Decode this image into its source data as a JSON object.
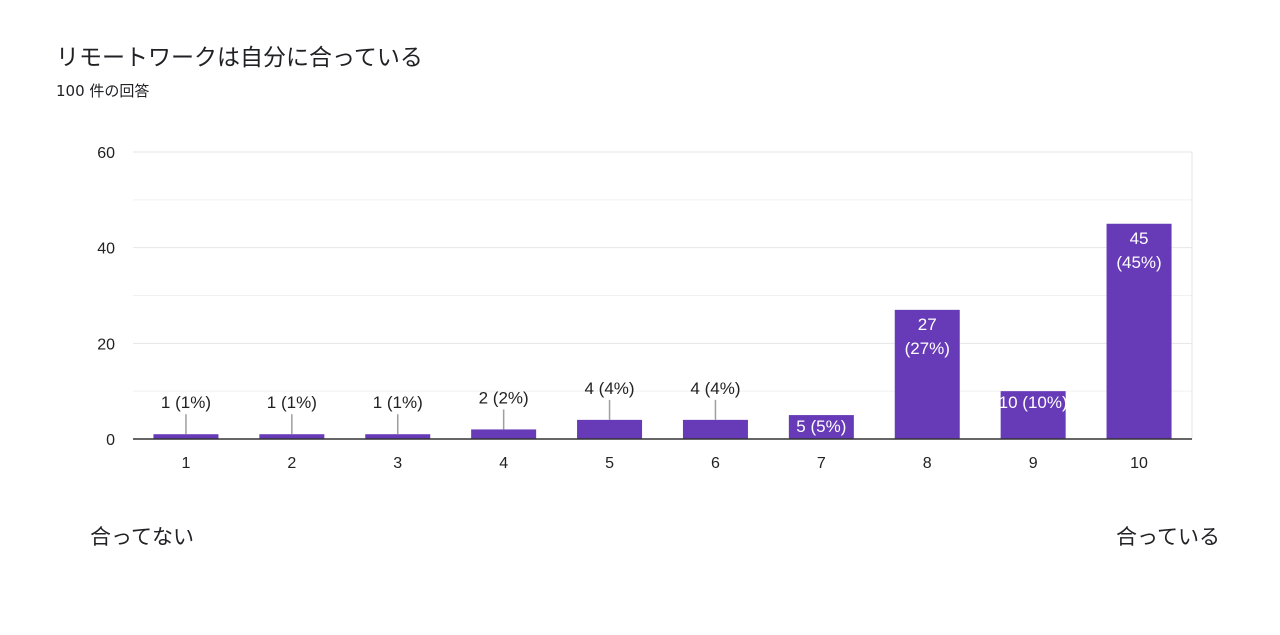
{
  "header": {
    "title": "リモートワークは自分に合っている",
    "subtitle": "100 件の回答"
  },
  "scale_labels": {
    "low": "合ってない",
    "high": "合っている"
  },
  "colors": {
    "bar": "#673ab7",
    "grid": "#e6e6e6",
    "axis": "#333333",
    "leader": "#9e9e9e",
    "text": "#222222",
    "inside_text": "#ffffff"
  },
  "chart_data": {
    "type": "bar",
    "categories": [
      "1",
      "2",
      "3",
      "4",
      "5",
      "6",
      "7",
      "8",
      "9",
      "10"
    ],
    "values": [
      1,
      1,
      1,
      2,
      4,
      4,
      5,
      27,
      10,
      45
    ],
    "data_labels": [
      "1 (1%)",
      "1 (1%)",
      "1 (1%)",
      "2 (2%)",
      "4 (4%)",
      "4 (4%)",
      "5 (5%)",
      "27\n(27%)",
      "10 (10%)",
      "45\n(45%)"
    ],
    "title": "リモートワークは自分に合っている",
    "subtitle": "100 件の回答",
    "xlabel": "",
    "ylabel": "",
    "ylim": [
      0,
      60
    ],
    "yticks": [
      0,
      20,
      40,
      60
    ],
    "grid": true,
    "legend": "none"
  }
}
